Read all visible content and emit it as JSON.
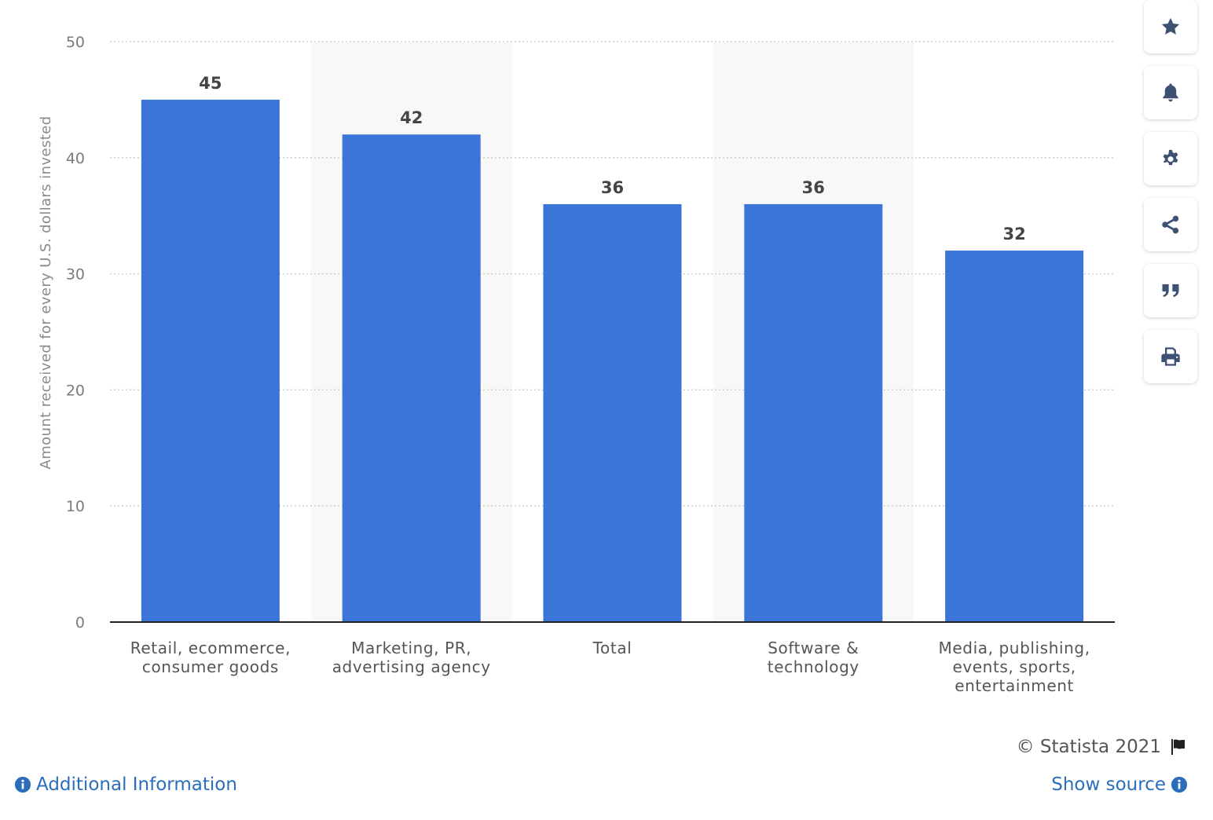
{
  "chart_data": {
    "type": "bar",
    "categories": [
      [
        "Retail, ecommerce,",
        "consumer goods"
      ],
      [
        "Marketing, PR,",
        "advertising agency"
      ],
      [
        "Total"
      ],
      [
        "Software &",
        "technology"
      ],
      [
        "Media, publishing,",
        "events, sports,",
        "entertainment"
      ]
    ],
    "values": [
      45,
      42,
      36,
      36,
      32
    ],
    "value_labels": [
      "45",
      "42",
      "36",
      "36",
      "32"
    ],
    "ylabel": "Amount received for every U.S. dollars invested",
    "ylim": [
      0,
      50
    ],
    "yticks": [
      0,
      10,
      20,
      30,
      40,
      50
    ],
    "ytick_labels": [
      "0",
      "10",
      "20",
      "30",
      "40",
      "50"
    ],
    "grid": "horizontal-dotted",
    "bar_color": "#3c75d8",
    "alternate_band_color": "#f8f8f9"
  },
  "toolbar": {
    "buttons": [
      "star-icon",
      "bell-icon",
      "gear-icon",
      "share-icon",
      "quote-icon",
      "print-icon"
    ]
  },
  "footer": {
    "copyright": "© Statista 2021",
    "additional_info": "Additional Information",
    "show_source": "Show source",
    "link_color": "#2a6ebb"
  }
}
